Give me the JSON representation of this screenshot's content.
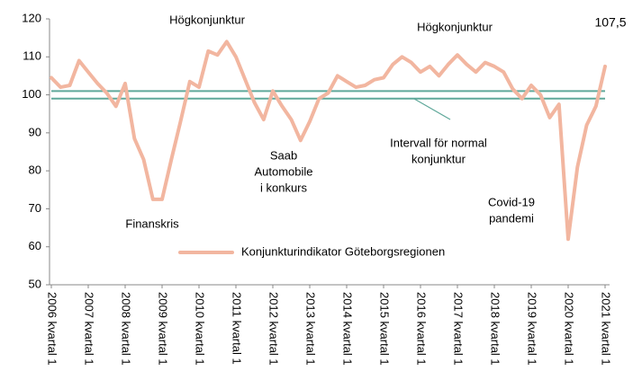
{
  "chart_data": {
    "type": "line",
    "categories": [
      "2006 kvartal 1",
      null,
      null,
      null,
      "2007 kvartal 1",
      null,
      null,
      null,
      "2008 kvartal 1",
      null,
      null,
      null,
      "2009 kvartal 1",
      null,
      null,
      null,
      "2010 kvartal 1",
      null,
      null,
      null,
      "2011 kvartal 1",
      null,
      null,
      null,
      "2012 kvartal 1",
      null,
      null,
      null,
      "2013 kvartal 1",
      null,
      null,
      null,
      "2014 kvartal 1",
      null,
      null,
      null,
      "2015 kvartal 1",
      null,
      null,
      null,
      "2016 kvartal 1",
      null,
      null,
      null,
      "2017 kvartal 1",
      null,
      null,
      null,
      "2018 kvartal 1",
      null,
      null,
      null,
      "2019 kvartal 1",
      null,
      null,
      null,
      "2020 kvartal 1",
      null,
      null,
      null,
      "2021 kvartal 1"
    ],
    "series": [
      {
        "name": "Konjunkturindikator Göteborgsregionen",
        "color": "#f2b6a0",
        "values": [
          104.5,
          102,
          102.5,
          109,
          106,
          103,
          100.5,
          97,
          103,
          88.5,
          83,
          72.5,
          72.5,
          83,
          93,
          103.5,
          102,
          111.5,
          110.5,
          114,
          110,
          104,
          98,
          93.5,
          101,
          97,
          93.5,
          88,
          93,
          99,
          100.5,
          105,
          103.5,
          102,
          102.5,
          104,
          104.5,
          108,
          110,
          108.5,
          106,
          107.5,
          105,
          108,
          110.5,
          108,
          106,
          108.5,
          107.5,
          106,
          101.5,
          99,
          102.5,
          100,
          94,
          97.5,
          62,
          81,
          92,
          97,
          107.5
        ],
        "value_labels": [
          null,
          null,
          null,
          null,
          null,
          null,
          null,
          null,
          null,
          null,
          null,
          null,
          null,
          null,
          null,
          null,
          null,
          null,
          null,
          null,
          null,
          null,
          null,
          null,
          null,
          null,
          null,
          null,
          null,
          null,
          null,
          null,
          null,
          null,
          null,
          null,
          null,
          null,
          null,
          null,
          null,
          null,
          null,
          null,
          null,
          null,
          null,
          null,
          null,
          null,
          null,
          null,
          null,
          null,
          null,
          null,
          null,
          null,
          null,
          null,
          "107,5"
        ]
      }
    ],
    "reference_lines": {
      "values": [
        99,
        101
      ],
      "color": "#5fa89a"
    },
    "annotations": [
      {
        "lines": [
          "Högkonjunktur"
        ]
      },
      {
        "lines": [
          "Högkonjunktur"
        ]
      },
      {
        "lines": [
          "Finanskris"
        ]
      },
      {
        "lines": [
          "Saab",
          "Automobile",
          "i konkurs"
        ]
      },
      {
        "lines": [
          "Intervall för normal",
          "konjunktur"
        ]
      },
      {
        "lines": [
          "Covid-19",
          "pandemi"
        ]
      }
    ],
    "ylim": [
      50,
      120
    ],
    "yticks": [
      50,
      60,
      70,
      80,
      90,
      100,
      110,
      120
    ],
    "legend": "lower center"
  }
}
